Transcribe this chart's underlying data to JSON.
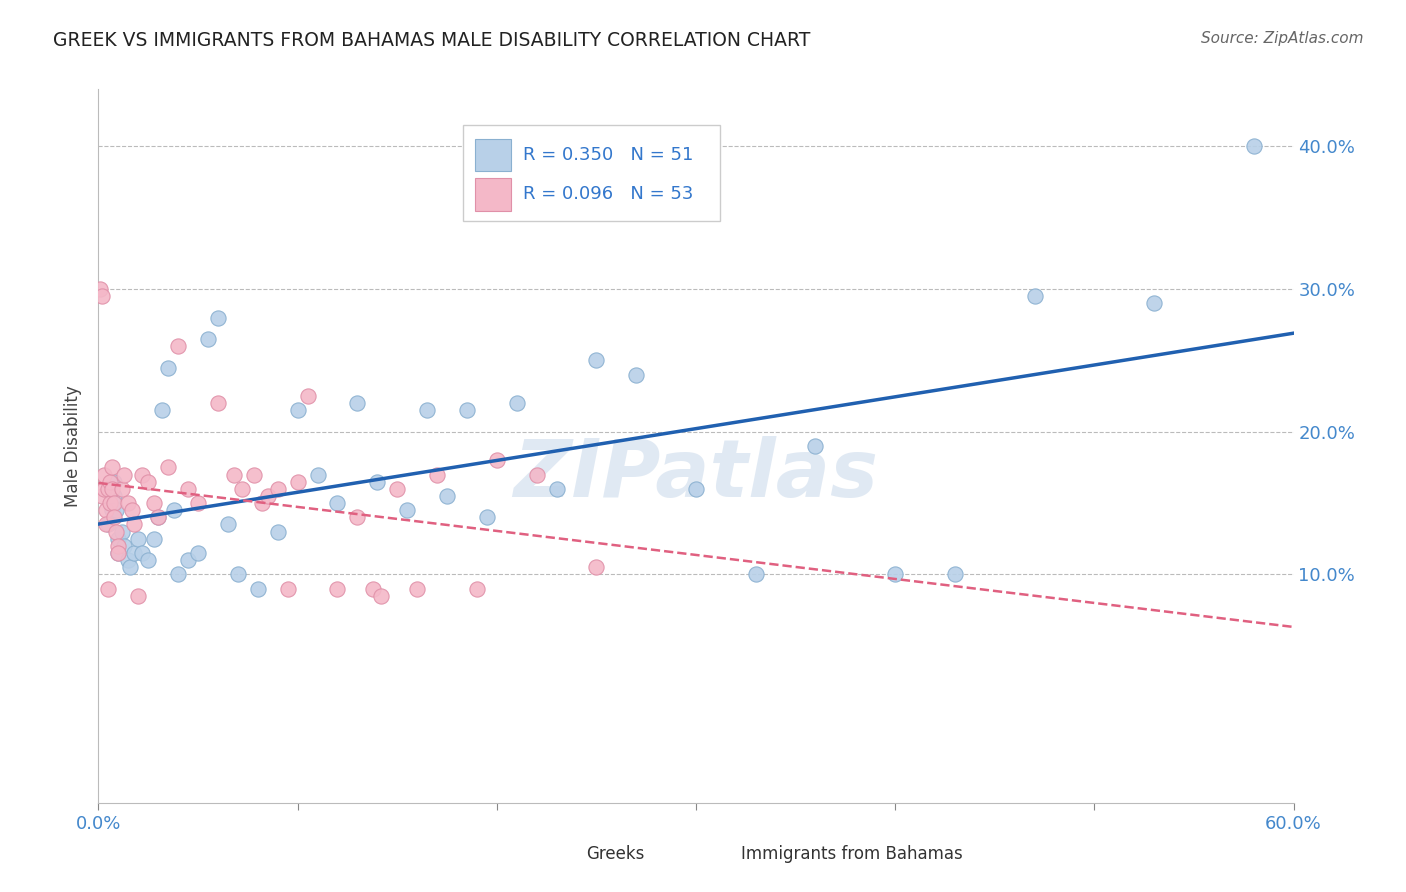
{
  "title": "GREEK VS IMMIGRANTS FROM BAHAMAS MALE DISABILITY CORRELATION CHART",
  "source": "Source: ZipAtlas.com",
  "ylabel": "Male Disability",
  "xlim": [
    0.0,
    0.6
  ],
  "ylim": [
    -0.06,
    0.44
  ],
  "R_greek": 0.35,
  "N_greek": 51,
  "R_bahamas": 0.096,
  "N_bahamas": 53,
  "greek_fill": "#b8d0e8",
  "greek_edge": "#8ab0d0",
  "bahamas_fill": "#f4b8c8",
  "bahamas_edge": "#e090a8",
  "trendline_greek_color": "#2060b0",
  "trendline_bahamas_color": "#e06080",
  "legend_label_greek": "Greeks",
  "legend_label_bahamas": "Immigrants from Bahamas",
  "watermark": "ZIPatlas",
  "greek_x": [
    0.005,
    0.007,
    0.008,
    0.008,
    0.009,
    0.01,
    0.01,
    0.012,
    0.013,
    0.015,
    0.016,
    0.018,
    0.02,
    0.022,
    0.025,
    0.028,
    0.03,
    0.032,
    0.035,
    0.038,
    0.04,
    0.045,
    0.05,
    0.055,
    0.06,
    0.065,
    0.07,
    0.08,
    0.09,
    0.1,
    0.11,
    0.12,
    0.13,
    0.14,
    0.155,
    0.165,
    0.175,
    0.185,
    0.195,
    0.21,
    0.23,
    0.25,
    0.27,
    0.3,
    0.33,
    0.36,
    0.4,
    0.43,
    0.47,
    0.53,
    0.58
  ],
  "greek_y": [
    0.135,
    0.145,
    0.155,
    0.165,
    0.145,
    0.125,
    0.115,
    0.13,
    0.12,
    0.11,
    0.105,
    0.115,
    0.125,
    0.115,
    0.11,
    0.125,
    0.14,
    0.215,
    0.245,
    0.145,
    0.1,
    0.11,
    0.115,
    0.265,
    0.28,
    0.135,
    0.1,
    0.09,
    0.13,
    0.215,
    0.17,
    0.15,
    0.22,
    0.165,
    0.145,
    0.215,
    0.155,
    0.215,
    0.14,
    0.22,
    0.16,
    0.25,
    0.24,
    0.16,
    0.1,
    0.19,
    0.1,
    0.1,
    0.295,
    0.29,
    0.4
  ],
  "bahamas_x": [
    0.001,
    0.002,
    0.002,
    0.003,
    0.003,
    0.004,
    0.004,
    0.005,
    0.005,
    0.006,
    0.006,
    0.007,
    0.007,
    0.008,
    0.008,
    0.009,
    0.01,
    0.01,
    0.012,
    0.013,
    0.015,
    0.017,
    0.018,
    0.02,
    0.022,
    0.025,
    0.028,
    0.03,
    0.035,
    0.04,
    0.045,
    0.05,
    0.06,
    0.068,
    0.072,
    0.078,
    0.082,
    0.085,
    0.09,
    0.095,
    0.1,
    0.105,
    0.12,
    0.13,
    0.138,
    0.142,
    0.15,
    0.16,
    0.17,
    0.19,
    0.2,
    0.22,
    0.25
  ],
  "bahamas_y": [
    0.3,
    0.295,
    0.155,
    0.16,
    0.17,
    0.145,
    0.135,
    0.09,
    0.16,
    0.165,
    0.15,
    0.16,
    0.175,
    0.15,
    0.14,
    0.13,
    0.12,
    0.115,
    0.16,
    0.17,
    0.15,
    0.145,
    0.135,
    0.085,
    0.17,
    0.165,
    0.15,
    0.14,
    0.175,
    0.26,
    0.16,
    0.15,
    0.22,
    0.17,
    0.16,
    0.17,
    0.15,
    0.155,
    0.16,
    0.09,
    0.165,
    0.225,
    0.09,
    0.14,
    0.09,
    0.085,
    0.16,
    0.09,
    0.17,
    0.09,
    0.18,
    0.17,
    0.105
  ]
}
